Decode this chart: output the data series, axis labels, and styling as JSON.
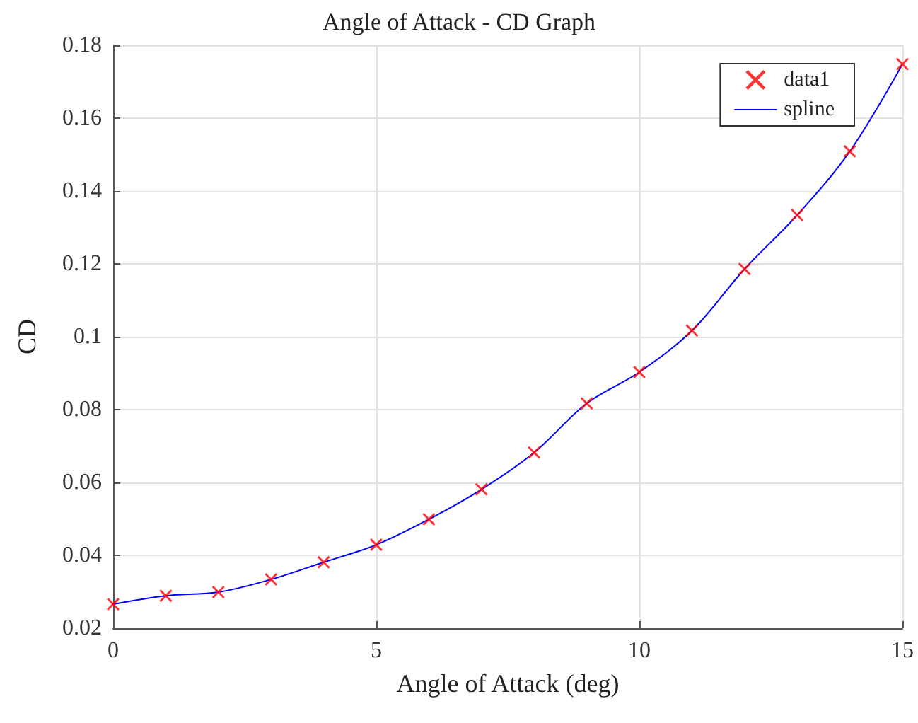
{
  "chart_data": {
    "type": "scatter",
    "title": "Angle of Attack - CD Graph",
    "xlabel": "Angle of Attack (deg)",
    "ylabel": "CD",
    "x": [
      0,
      1,
      2,
      3,
      4,
      5,
      6,
      7,
      8,
      9,
      10,
      11,
      12,
      13,
      14,
      15
    ],
    "series": [
      {
        "name": "data1",
        "marker": "cross",
        "color": "#ff0000",
        "values": [
          0.0266,
          0.0289,
          0.0299,
          0.0334,
          0.0381,
          0.0429,
          0.0499,
          0.0581,
          0.0682,
          0.0817,
          0.0903,
          0.1017,
          0.1186,
          0.1334,
          0.1509,
          0.1748
        ]
      },
      {
        "name": "spline",
        "type": "line",
        "marker": "none",
        "color": "#0000ff",
        "values": [
          0.0266,
          0.0289,
          0.0299,
          0.0334,
          0.0381,
          0.0429,
          0.0499,
          0.0581,
          0.0682,
          0.0817,
          0.0903,
          0.1017,
          0.1186,
          0.1334,
          0.1509,
          0.1748
        ]
      }
    ],
    "xlim": [
      0,
      15
    ],
    "xticks": [
      0,
      5,
      10,
      15
    ],
    "ylim": [
      0.02,
      0.18
    ],
    "yticks": [
      0.02,
      0.04,
      0.06,
      0.08,
      0.1,
      0.12,
      0.14,
      0.16,
      0.18
    ],
    "grid": true,
    "legend": "top right"
  }
}
